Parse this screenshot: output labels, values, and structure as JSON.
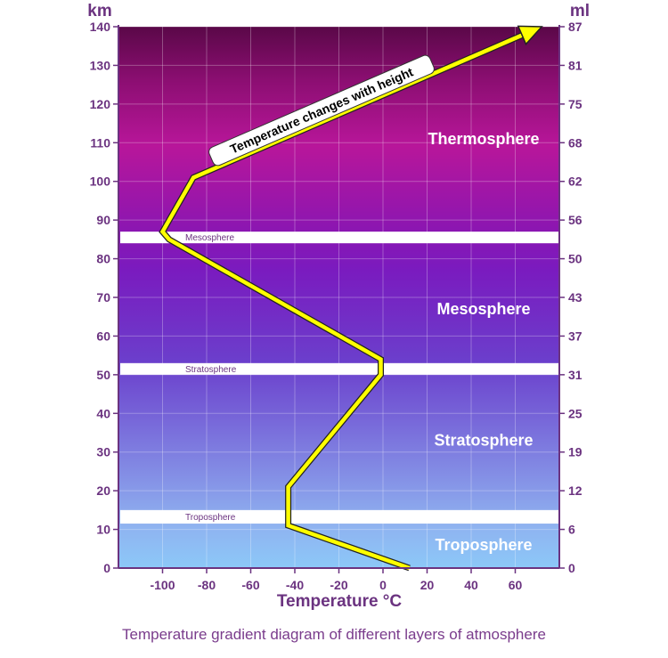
{
  "caption": "Temperature gradient diagram of different layers of atmosphere",
  "chart_data": {
    "type": "line",
    "title": "",
    "xlabel": "Temperature °C",
    "y_left_unit": "km",
    "y_right_unit": "ml",
    "xlim": [
      -120,
      80
    ],
    "ylim": [
      0,
      140
    ],
    "x_ticks": [
      -100,
      -80,
      -60,
      -40,
      -20,
      0,
      20,
      40,
      60
    ],
    "y_left_ticks": [
      0,
      10,
      20,
      30,
      40,
      50,
      60,
      70,
      80,
      90,
      100,
      110,
      120,
      130,
      140
    ],
    "y_right_ticks": [
      {
        "km": 0,
        "label": "0"
      },
      {
        "km": 10,
        "label": "6"
      },
      {
        "km": 20,
        "label": "12"
      },
      {
        "km": 30,
        "label": "19"
      },
      {
        "km": 40,
        "label": "25"
      },
      {
        "km": 50,
        "label": "31"
      },
      {
        "km": 60,
        "label": "37"
      },
      {
        "km": 70,
        "label": "43"
      },
      {
        "km": 80,
        "label": "50"
      },
      {
        "km": 90,
        "label": "56"
      },
      {
        "km": 100,
        "label": "62"
      },
      {
        "km": 110,
        "label": "68"
      },
      {
        "km": 120,
        "label": "75"
      },
      {
        "km": 130,
        "label": "81"
      },
      {
        "km": 140,
        "label": "87"
      }
    ],
    "grid": true,
    "series": [
      {
        "color": "#ffff00",
        "points": [
          [
            12,
            0
          ],
          [
            -43,
            11
          ],
          [
            -43,
            21
          ],
          [
            -1,
            50
          ],
          [
            -1,
            54
          ],
          [
            -97,
            85
          ],
          [
            -100,
            87
          ],
          [
            -86,
            101
          ],
          [
            72,
            140
          ]
        ]
      }
    ],
    "layers": [
      {
        "name": "Troposphere",
        "label_km": 6
      },
      {
        "name": "Stratosphere",
        "label_km": 33
      },
      {
        "name": "Mesosphere",
        "label_km": 67
      },
      {
        "name": "Thermosphere",
        "label_km": 111
      }
    ],
    "boundaries": [
      {
        "name": "Troposphere",
        "km_min": 11.5,
        "km_max": 15
      },
      {
        "name": "Stratosphere",
        "km_min": 50,
        "km_max": 53
      },
      {
        "name": "Mesosphere",
        "km_min": 84,
        "km_max": 87
      }
    ],
    "annotation": "Temperature changes with height"
  }
}
